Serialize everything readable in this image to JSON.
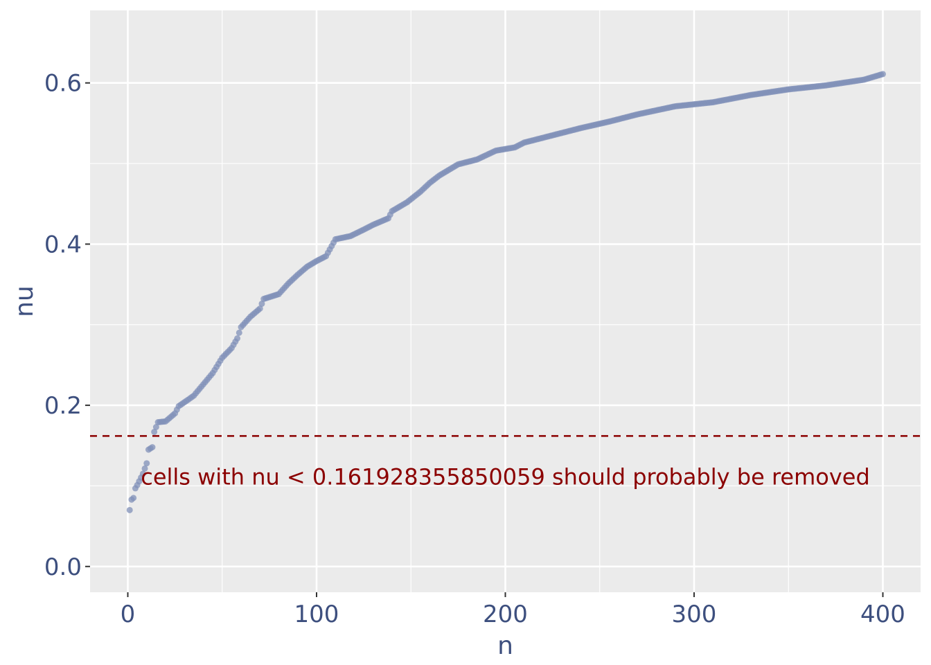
{
  "chart_data": {
    "type": "scatter",
    "title": "",
    "xlabel": "n",
    "ylabel": "nu",
    "xlim": [
      -20,
      420
    ],
    "ylim": [
      -0.032,
      0.69
    ],
    "x_ticks": [
      0,
      100,
      200,
      300,
      400
    ],
    "x_tick_labels": [
      "0",
      "100",
      "200",
      "300",
      "400"
    ],
    "y_ticks": [
      0.0,
      0.2,
      0.4,
      0.6
    ],
    "y_tick_labels": [
      "0.0",
      "0.2",
      "0.4",
      "0.6"
    ],
    "grid": true,
    "point_color": "#8090b8",
    "reference_color": "#8b0000",
    "anchors": [
      [
        1,
        0.07
      ],
      [
        2,
        0.083
      ],
      [
        3,
        0.085
      ],
      [
        4,
        0.097
      ],
      [
        5,
        0.101
      ],
      [
        8,
        0.115
      ],
      [
        10,
        0.128
      ],
      [
        11,
        0.145
      ],
      [
        13,
        0.148
      ],
      [
        14,
        0.167
      ],
      [
        16,
        0.179
      ],
      [
        20,
        0.18
      ],
      [
        25,
        0.19
      ],
      [
        27,
        0.199
      ],
      [
        32,
        0.207
      ],
      [
        35,
        0.212
      ],
      [
        40,
        0.226
      ],
      [
        45,
        0.24
      ],
      [
        50,
        0.259
      ],
      [
        55,
        0.271
      ],
      [
        58,
        0.283
      ],
      [
        60,
        0.297
      ],
      [
        65,
        0.31
      ],
      [
        70,
        0.32
      ],
      [
        72,
        0.332
      ],
      [
        80,
        0.338
      ],
      [
        85,
        0.351
      ],
      [
        90,
        0.362
      ],
      [
        95,
        0.372
      ],
      [
        100,
        0.379
      ],
      [
        105,
        0.385
      ],
      [
        110,
        0.406
      ],
      [
        118,
        0.41
      ],
      [
        125,
        0.418
      ],
      [
        130,
        0.424
      ],
      [
        138,
        0.432
      ],
      [
        140,
        0.441
      ],
      [
        148,
        0.452
      ],
      [
        155,
        0.465
      ],
      [
        160,
        0.476
      ],
      [
        165,
        0.485
      ],
      [
        175,
        0.499
      ],
      [
        185,
        0.505
      ],
      [
        195,
        0.516
      ],
      [
        205,
        0.52
      ],
      [
        210,
        0.526
      ],
      [
        220,
        0.532
      ],
      [
        240,
        0.544
      ],
      [
        255,
        0.552
      ],
      [
        270,
        0.561
      ],
      [
        290,
        0.571
      ],
      [
        310,
        0.576
      ],
      [
        330,
        0.585
      ],
      [
        350,
        0.592
      ],
      [
        370,
        0.597
      ],
      [
        390,
        0.604
      ],
      [
        400,
        0.611
      ]
    ],
    "n_points": 400,
    "reference_line": {
      "y": 0.161928355850059,
      "style": "dashed"
    },
    "annotation": {
      "text": "cells with nu < 0.161928355850059 should probably be removed",
      "x": 200,
      "y": 0.111
    }
  }
}
